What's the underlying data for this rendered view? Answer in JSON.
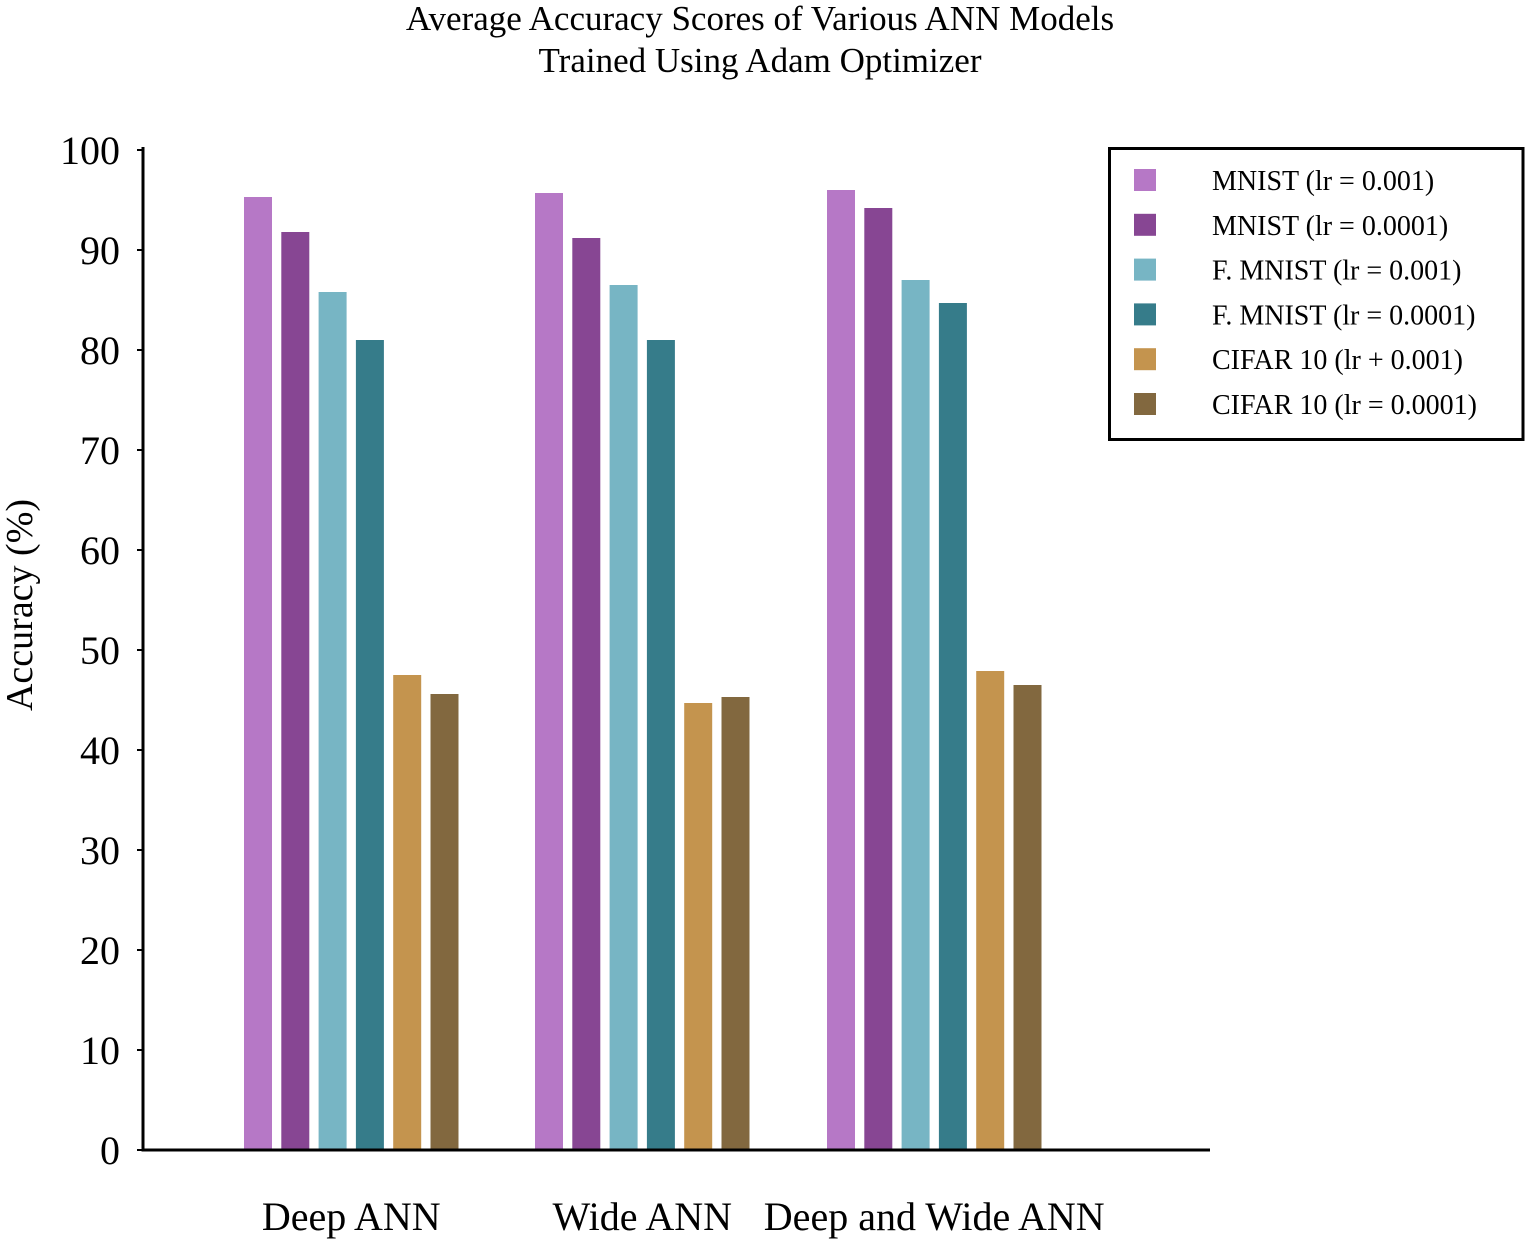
{
  "chart_data": {
    "type": "bar",
    "title_lines": [
      "Average Accuracy Scores of Various ANN Models",
      "Trained Using Adam Optimizer"
    ],
    "xlabel": "",
    "ylabel": "Accuracy (%)",
    "ylim": [
      0,
      100
    ],
    "yticks": [
      0,
      10,
      20,
      30,
      40,
      50,
      60,
      70,
      80,
      90,
      100
    ],
    "grid": false,
    "legend_position": "top-right",
    "categories": [
      "Deep ANN",
      "Wide ANN",
      "Deep and Wide ANN"
    ],
    "series": [
      {
        "name": "MNIST (lr = 0.001)",
        "color": "#b678c6",
        "values": [
          95.3,
          95.7,
          96.0
        ]
      },
      {
        "name": "MNIST (lr = 0.0001)",
        "color": "#874693",
        "values": [
          91.8,
          91.2,
          94.2
        ]
      },
      {
        "name": "F. MNIST (lr = 0.001)",
        "color": "#77b5c4",
        "values": [
          85.8,
          86.5,
          87.0
        ]
      },
      {
        "name": "F. MNIST (lr = 0.0001)",
        "color": "#367c8a",
        "values": [
          81.0,
          81.0,
          84.7
        ]
      },
      {
        "name": "CIFAR 10 (lr + 0.001)",
        "color": "#c4944e",
        "values": [
          47.5,
          44.7,
          47.9
        ]
      },
      {
        "name": "CIFAR 10 (lr = 0.0001)",
        "color": "#82683f",
        "values": [
          45.6,
          45.3,
          46.5
        ]
      }
    ]
  }
}
